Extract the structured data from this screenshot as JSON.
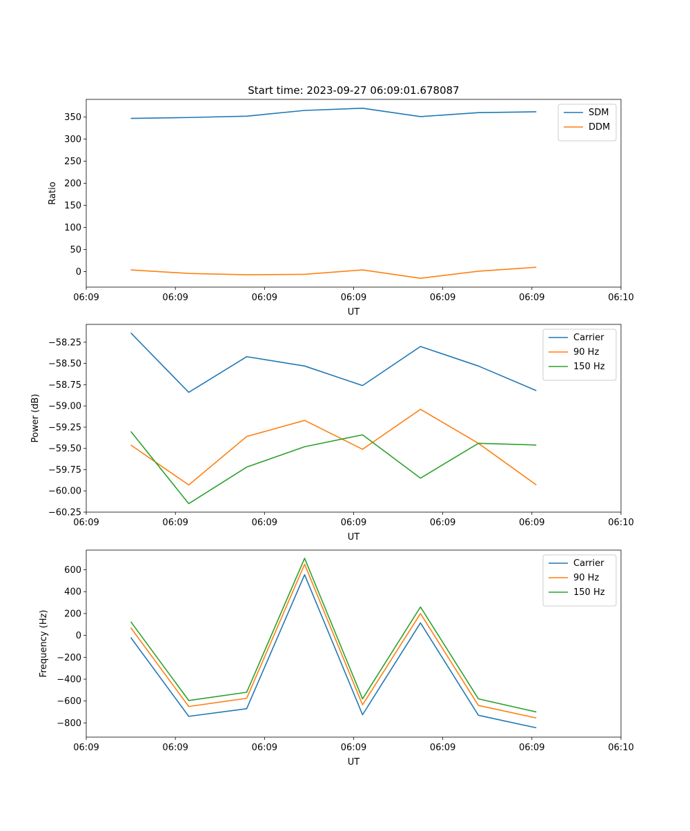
{
  "chart_data": [
    {
      "type": "line",
      "title": "Start time: 2023-09-27 06:09:01.678087",
      "xlabel": "UT",
      "ylabel": "Ratio",
      "x": [
        0.5,
        1.15,
        1.8,
        2.45,
        3.1,
        3.75,
        4.4,
        5.05
      ],
      "xlim": [
        0,
        6
      ],
      "xticks": [
        0,
        1,
        2,
        3,
        4,
        5,
        6
      ],
      "xtick_labels": [
        "06:09",
        "06:09",
        "06:09",
        "06:09",
        "06:09",
        "06:09",
        "06:10"
      ],
      "ylim": [
        -35,
        390
      ],
      "yticks": [
        0,
        50,
        100,
        150,
        200,
        250,
        300,
        350
      ],
      "ytick_labels": [
        "0",
        "50",
        "100",
        "150",
        "200",
        "250",
        "300",
        "350"
      ],
      "legend_position": "top-right",
      "series": [
        {
          "name": "SDM",
          "color": "#1f77b4",
          "values": [
            347,
            349,
            352,
            365,
            370,
            351,
            360,
            362
          ]
        },
        {
          "name": "DDM",
          "color": "#ff7f0e",
          "values": [
            4,
            -4,
            -7,
            -6,
            4,
            -15,
            1,
            10
          ]
        }
      ]
    },
    {
      "type": "line",
      "title": "",
      "xlabel": "UT",
      "ylabel": "Power (dB)",
      "x": [
        0.5,
        1.15,
        1.8,
        2.45,
        3.1,
        3.75,
        4.4,
        5.05
      ],
      "xlim": [
        0,
        6
      ],
      "xticks": [
        0,
        1,
        2,
        3,
        4,
        5,
        6
      ],
      "xtick_labels": [
        "06:09",
        "06:09",
        "06:09",
        "06:09",
        "06:09",
        "06:09",
        "06:10"
      ],
      "ylim": [
        -60.25,
        -58.04
      ],
      "yticks": [
        -60.25,
        -60.0,
        -59.75,
        -59.5,
        -59.25,
        -59.0,
        -58.75,
        -58.5,
        -58.25
      ],
      "ytick_labels": [
        "−60.25",
        "−60.00",
        "−59.75",
        "−59.50",
        "−59.25",
        "−59.00",
        "−58.75",
        "−58.50",
        "−58.25"
      ],
      "legend_position": "top-right",
      "series": [
        {
          "name": "Carrier",
          "color": "#1f77b4",
          "values": [
            -58.14,
            -58.84,
            -58.42,
            -58.53,
            -58.76,
            -58.3,
            -58.53,
            -58.82
          ]
        },
        {
          "name": "90 Hz",
          "color": "#ff7f0e",
          "values": [
            -59.46,
            -59.93,
            -59.36,
            -59.17,
            -59.51,
            -59.04,
            -59.44,
            -59.93
          ]
        },
        {
          "name": "150 Hz",
          "color": "#2ca02c",
          "values": [
            -59.3,
            -60.15,
            -59.72,
            -59.48,
            -59.34,
            -59.85,
            -59.44,
            -59.46
          ]
        }
      ]
    },
    {
      "type": "line",
      "title": "",
      "xlabel": "UT",
      "ylabel": "Frequency (Hz)",
      "x": [
        0.5,
        1.15,
        1.8,
        2.45,
        3.1,
        3.75,
        4.4,
        5.05
      ],
      "xlim": [
        0,
        6
      ],
      "xticks": [
        0,
        1,
        2,
        3,
        4,
        5,
        6
      ],
      "xtick_labels": [
        "06:09",
        "06:09",
        "06:09",
        "06:09",
        "06:09",
        "06:09",
        "06:10"
      ],
      "ylim": [
        -930,
        780
      ],
      "yticks": [
        -800,
        -600,
        -400,
        -200,
        0,
        200,
        400,
        600
      ],
      "ytick_labels": [
        "−800",
        "−600",
        "−400",
        "−200",
        "0",
        "200",
        "400",
        "600"
      ],
      "legend_position": "top-right",
      "series": [
        {
          "name": "Carrier",
          "color": "#1f77b4",
          "values": [
            -20,
            -740,
            -670,
            555,
            -725,
            115,
            -730,
            -845
          ]
        },
        {
          "name": "90 Hz",
          "color": "#ff7f0e",
          "values": [
            70,
            -650,
            -575,
            650,
            -635,
            200,
            -640,
            -755
          ]
        },
        {
          "name": "150 Hz",
          "color": "#2ca02c",
          "values": [
            125,
            -595,
            -520,
            705,
            -580,
            260,
            -580,
            -700
          ]
        }
      ]
    }
  ]
}
